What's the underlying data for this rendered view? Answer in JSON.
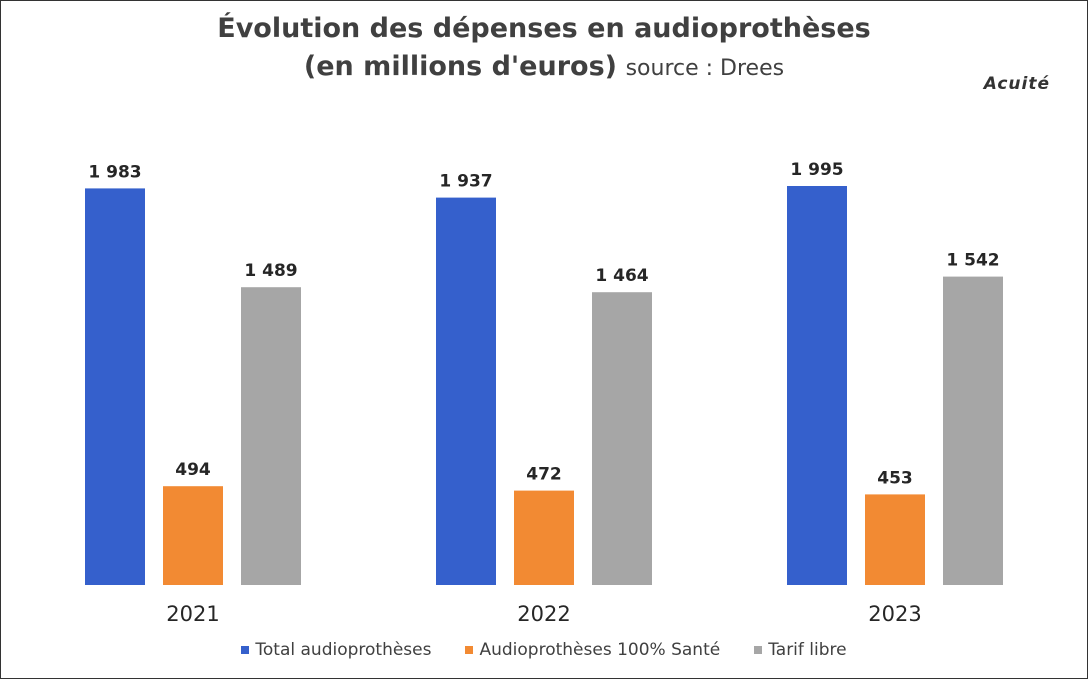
{
  "title": {
    "line1": "Évolution des dépenses en audioprothèses",
    "line2": "(en millions d'euros)",
    "source": "source : Drees"
  },
  "logo": "Acuité",
  "chart_data": {
    "type": "bar",
    "categories": [
      "2021",
      "2022",
      "2023"
    ],
    "series": [
      {
        "name": "Total audioprothèses",
        "values": [
          1983,
          1937,
          1995
        ],
        "labels": [
          "1 983",
          "1 937",
          "1 995"
        ],
        "color": "#3560CC"
      },
      {
        "name": "Audioprothèses 100% Santé",
        "values": [
          494,
          472,
          453
        ],
        "labels": [
          "494",
          "472",
          "453"
        ],
        "color": "#F28A33"
      },
      {
        "name": "Tarif libre",
        "values": [
          1489,
          1464,
          1542
        ],
        "labels": [
          "1 489",
          "1 464",
          "1 542"
        ],
        "color": "#A6A6A6"
      }
    ],
    "ylim": [
      0,
      2100
    ],
    "grid": false,
    "legend_position": "bottom"
  }
}
